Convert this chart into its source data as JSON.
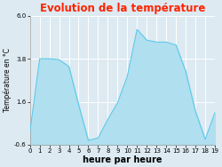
{
  "title": "Evolution de la température",
  "xlabel": "heure par heure",
  "ylabel": "Température en °C",
  "background_color": "#ddeaf2",
  "plot_background": "#ddeaf2",
  "title_color": "#ff2200",
  "ylim": [
    -0.6,
    6.0
  ],
  "yticks": [
    -0.6,
    1.6,
    3.8,
    6.0
  ],
  "ytick_labels": [
    "-0.6",
    "1.6",
    "3.8",
    "6.0"
  ],
  "hours": [
    0,
    1,
    2,
    3,
    4,
    5,
    6,
    7,
    8,
    9,
    10,
    11,
    12,
    13,
    14,
    15,
    16,
    17,
    18,
    19
  ],
  "temperatures": [
    0.05,
    3.8,
    3.8,
    3.75,
    3.4,
    1.45,
    -0.38,
    -0.25,
    0.7,
    1.55,
    2.9,
    5.3,
    4.75,
    4.65,
    4.65,
    4.5,
    3.15,
    1.1,
    -0.32,
    1.05
  ],
  "fill_color": "#b0dff0",
  "line_color": "#55c8e8",
  "fill_alpha": 1.0,
  "grid_color": "#ffffff",
  "axis_color": "#999999",
  "tick_fontsize": 5.0,
  "xlabel_fontsize": 7.0,
  "ylabel_fontsize": 5.5,
  "title_fontsize": 8.5
}
